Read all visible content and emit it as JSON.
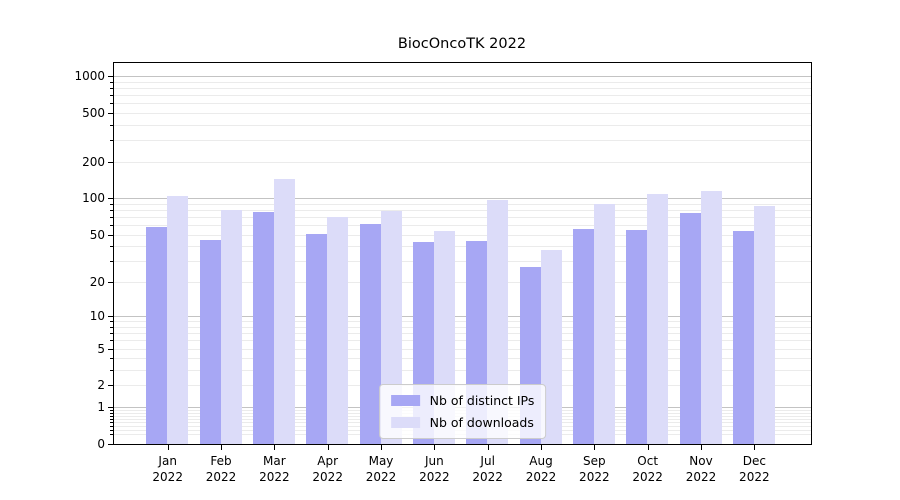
{
  "title": "BiocOncoTK 2022",
  "chart_data": {
    "type": "bar",
    "title": "BiocOncoTK 2022",
    "categories": [
      "Jan 2022",
      "Feb 2022",
      "Mar 2022",
      "Apr 2022",
      "May 2022",
      "Jun 2022",
      "Jul 2022",
      "Aug 2022",
      "Sep 2022",
      "Oct 2022",
      "Nov 2022",
      "Dec 2022"
    ],
    "x_tick_months": [
      "Jan",
      "Feb",
      "Mar",
      "Apr",
      "May",
      "Jun",
      "Jul",
      "Aug",
      "Sep",
      "Oct",
      "Nov",
      "Dec"
    ],
    "x_tick_year": "2022",
    "series": [
      {
        "name": "Nb of distinct IPs",
        "color": "#a7a7f4",
        "values": [
          58,
          45,
          77,
          51,
          61,
          43,
          44,
          27,
          56,
          55,
          76,
          54
        ]
      },
      {
        "name": "Nb of downloads",
        "color": "#dcdcf9",
        "values": [
          105,
          80,
          145,
          70,
          79,
          54,
          97,
          37,
          90,
          108,
          114,
          86
        ]
      }
    ],
    "yscale": "log1p",
    "y_tick_labels": [
      1000,
      500,
      200,
      100,
      50,
      20,
      10,
      5,
      2,
      1,
      0
    ],
    "y_major_gridlines": [
      1,
      10,
      100,
      1000
    ],
    "ylim": [
      0,
      1250
    ],
    "xlabel": "",
    "ylabel": "",
    "grid": "both",
    "legend_position": "lower center",
    "colors": {
      "bar_ips": "#a7a7f4",
      "bar_downloads": "#dcdcf9",
      "grid_major": "#c3c3c3",
      "grid_minor": "#ebebeb",
      "axis": "#000000",
      "legend_border": "#cccccc",
      "background": "#ffffff"
    }
  }
}
